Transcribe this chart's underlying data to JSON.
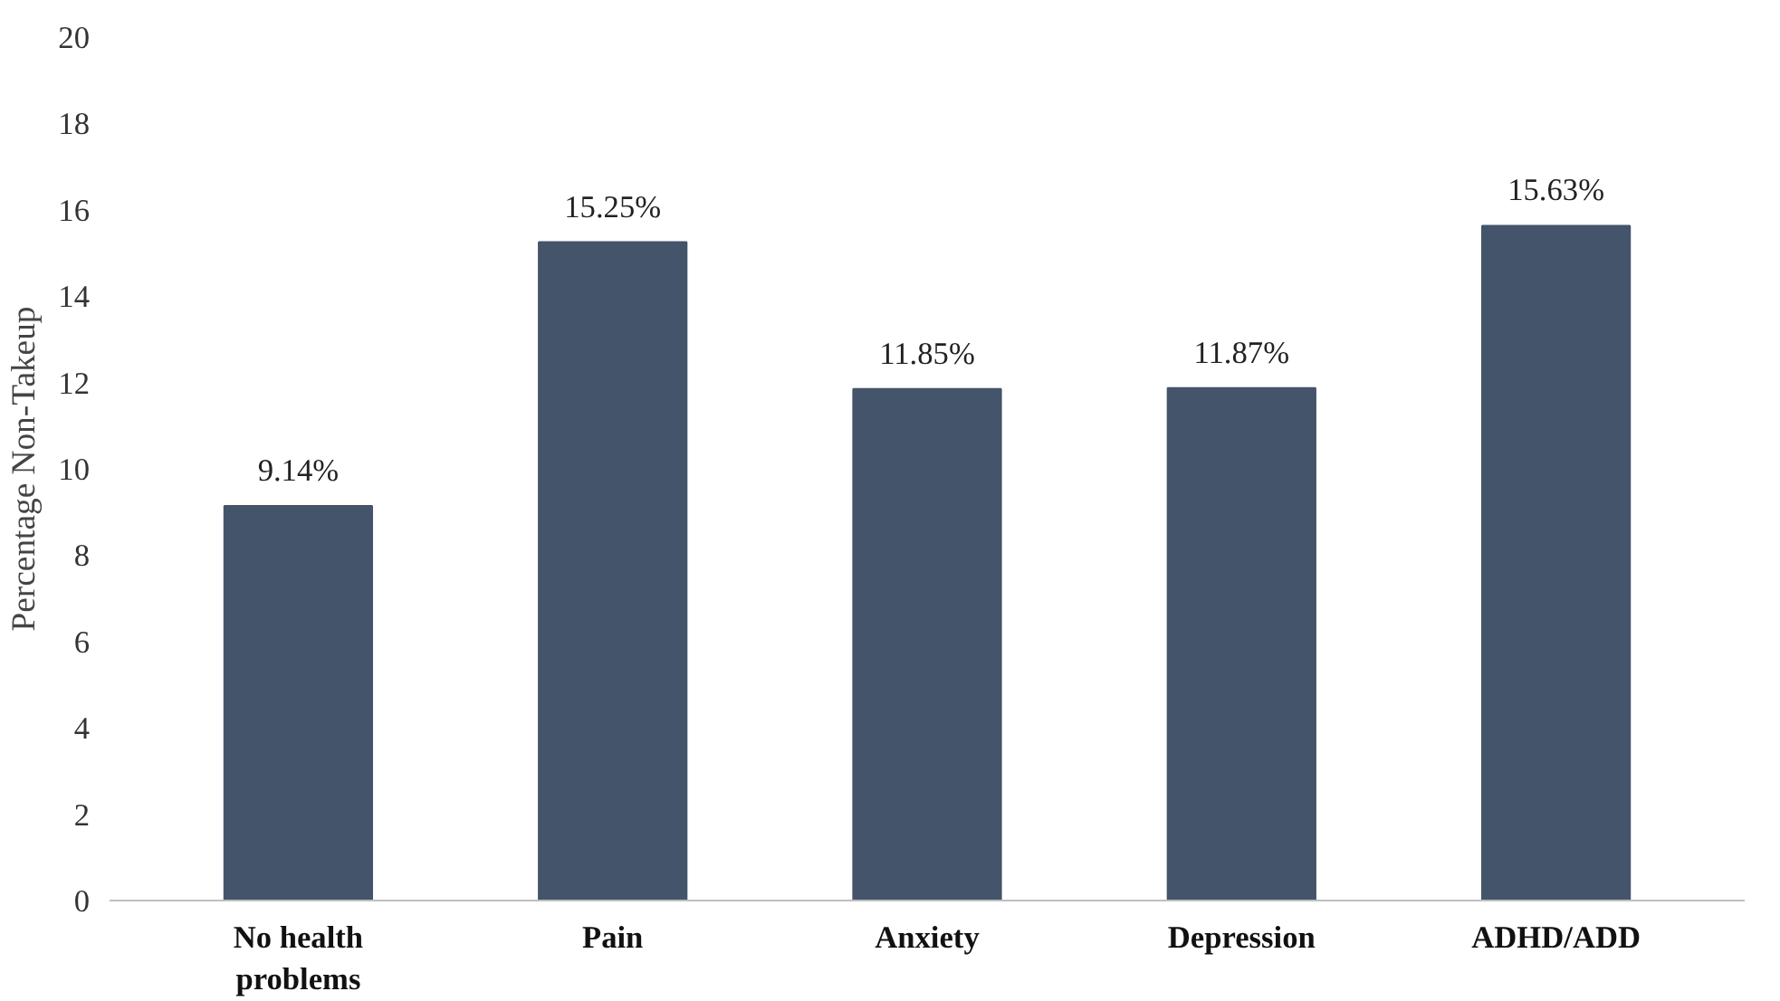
{
  "chart_data": {
    "type": "bar",
    "ylabel": "Percentage Non-Takeup",
    "categories": [
      "No health problems",
      "Pain",
      "Anxiety",
      "Depression",
      "ADHD/ADD"
    ],
    "values": [
      9.14,
      15.25,
      11.85,
      11.87,
      15.63
    ],
    "value_labels": [
      "9.14%",
      "15.25%",
      "11.85%",
      "11.87%",
      "15.63%"
    ],
    "color": "#44546a",
    "ylim": [
      0,
      20
    ],
    "yticks": [
      0,
      2,
      4,
      6,
      8,
      10,
      12,
      14,
      16,
      18,
      20
    ],
    "grid": false
  }
}
